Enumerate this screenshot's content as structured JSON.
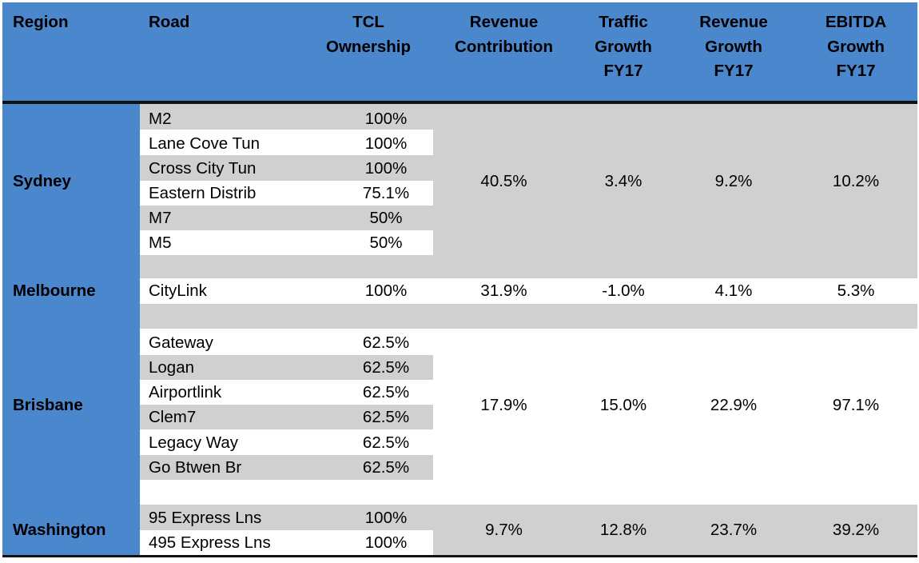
{
  "header": {
    "region": "Region",
    "road": "Road",
    "tcl_line1": "TCL",
    "tcl_line2": "Ownership",
    "revcon_line1": "Revenue",
    "revcon_line2": "Contribution",
    "traffic_line1": "Traffic",
    "traffic_line2": "Growth",
    "traffic_line3": "FY17",
    "revgrowth_line1": "Revenue",
    "revgrowth_line2": "Growth",
    "revgrowth_line3": "FY17",
    "ebitda_line1": "EBITDA",
    "ebitda_line2": "Growth",
    "ebitda_line3": "FY17"
  },
  "regions": [
    {
      "name": "Sydney",
      "roads": [
        {
          "road": "M2",
          "ownership": "100%"
        },
        {
          "road": "Lane Cove Tun",
          "ownership": "100%"
        },
        {
          "road": "Cross City Tun",
          "ownership": "100%"
        },
        {
          "road": "Eastern Distrib",
          "ownership": "75.1%"
        },
        {
          "road": "M7",
          "ownership": "50%"
        },
        {
          "road": "M5",
          "ownership": "50%"
        }
      ],
      "revenue_contribution": "40.5%",
      "traffic_growth": "3.4%",
      "revenue_growth": "9.2%",
      "ebitda_growth": "10.2%"
    },
    {
      "name": "Melbourne",
      "roads": [
        {
          "road": "CityLink",
          "ownership": "100%"
        }
      ],
      "revenue_contribution": "31.9%",
      "traffic_growth": "-1.0%",
      "revenue_growth": "4.1%",
      "ebitda_growth": "5.3%"
    },
    {
      "name": "Brisbane",
      "roads": [
        {
          "road": "Gateway",
          "ownership": "62.5%"
        },
        {
          "road": "Logan",
          "ownership": "62.5%"
        },
        {
          "road": "Airportlink",
          "ownership": "62.5%"
        },
        {
          "road": "Clem7",
          "ownership": "62.5%"
        },
        {
          "road": "Legacy Way",
          "ownership": "62.5%"
        },
        {
          "road": "Go Btwen Br",
          "ownership": "62.5%"
        }
      ],
      "revenue_contribution": "17.9%",
      "traffic_growth": "15.0%",
      "revenue_growth": "22.9%",
      "ebitda_growth": "97.1%"
    },
    {
      "name": "Washington",
      "roads": [
        {
          "road": "95 Express Lns",
          "ownership": "100%"
        },
        {
          "road": "495 Express Lns",
          "ownership": "100%"
        }
      ],
      "revenue_contribution": "9.7%",
      "traffic_growth": "12.8%",
      "revenue_growth": "23.7%",
      "ebitda_growth": "39.2%"
    }
  ]
}
